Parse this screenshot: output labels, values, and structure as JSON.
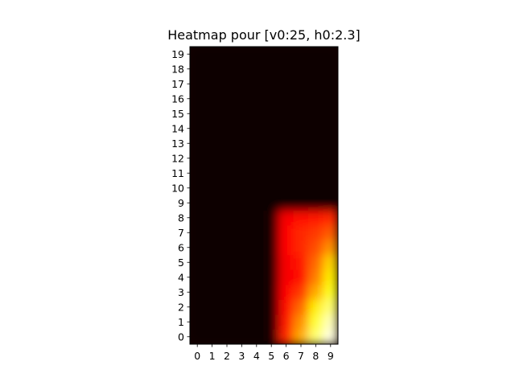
{
  "chart_data": {
    "type": "heatmap",
    "title": "Heatmap pour [v0:25, h0:2.3]",
    "xlabel": "",
    "ylabel": "",
    "colormap": "hot",
    "interpolation": "smooth",
    "x_ticks": [
      "0",
      "1",
      "2",
      "3",
      "4",
      "5",
      "6",
      "7",
      "8",
      "9"
    ],
    "y_ticks": [
      "0",
      "1",
      "2",
      "3",
      "4",
      "5",
      "6",
      "7",
      "8",
      "9",
      "10",
      "11",
      "12",
      "13",
      "14",
      "15",
      "16",
      "17",
      "18",
      "19"
    ],
    "xlim": [
      -0.5,
      9.5
    ],
    "ylim": [
      -0.5,
      19.5
    ],
    "vmin": 0,
    "vmax": 1,
    "grid": false,
    "legend": "none",
    "values_rows_y0_to_y19": [
      [
        0,
        0,
        0,
        0,
        0,
        0.02,
        0.42,
        0.62,
        0.86,
        0.97
      ],
      [
        0,
        0,
        0,
        0,
        0,
        0.02,
        0.4,
        0.58,
        0.8,
        0.93
      ],
      [
        0,
        0,
        0,
        0,
        0,
        0.02,
        0.38,
        0.52,
        0.72,
        0.86
      ],
      [
        0,
        0,
        0,
        0,
        0,
        0.02,
        0.36,
        0.45,
        0.62,
        0.78
      ],
      [
        0,
        0,
        0,
        0,
        0,
        0.02,
        0.34,
        0.38,
        0.55,
        0.72
      ],
      [
        0,
        0,
        0,
        0,
        0,
        0.02,
        0.34,
        0.4,
        0.52,
        0.68
      ],
      [
        0,
        0,
        0,
        0,
        0,
        0.02,
        0.35,
        0.42,
        0.48,
        0.58
      ],
      [
        0,
        0,
        0,
        0,
        0,
        0.02,
        0.36,
        0.42,
        0.45,
        0.5
      ],
      [
        0,
        0,
        0,
        0,
        0,
        0.02,
        0.34,
        0.38,
        0.4,
        0.42
      ],
      [
        0,
        0,
        0,
        0,
        0,
        0,
        0,
        0,
        0,
        0
      ],
      [
        0,
        0,
        0,
        0,
        0,
        0,
        0,
        0,
        0,
        0
      ],
      [
        0,
        0,
        0,
        0,
        0,
        0,
        0,
        0,
        0,
        0
      ],
      [
        0,
        0,
        0,
        0,
        0,
        0,
        0,
        0,
        0,
        0
      ],
      [
        0,
        0,
        0,
        0,
        0,
        0,
        0,
        0,
        0,
        0
      ],
      [
        0,
        0,
        0,
        0,
        0,
        0,
        0,
        0,
        0,
        0
      ],
      [
        0,
        0,
        0,
        0,
        0,
        0,
        0,
        0,
        0,
        0
      ],
      [
        0,
        0,
        0,
        0,
        0,
        0,
        0,
        0,
        0,
        0
      ],
      [
        0,
        0,
        0,
        0,
        0,
        0,
        0,
        0,
        0,
        0
      ],
      [
        0,
        0,
        0,
        0,
        0,
        0,
        0,
        0,
        0,
        0
      ],
      [
        0,
        0,
        0,
        0,
        0,
        0,
        0,
        0,
        0,
        0
      ]
    ]
  }
}
